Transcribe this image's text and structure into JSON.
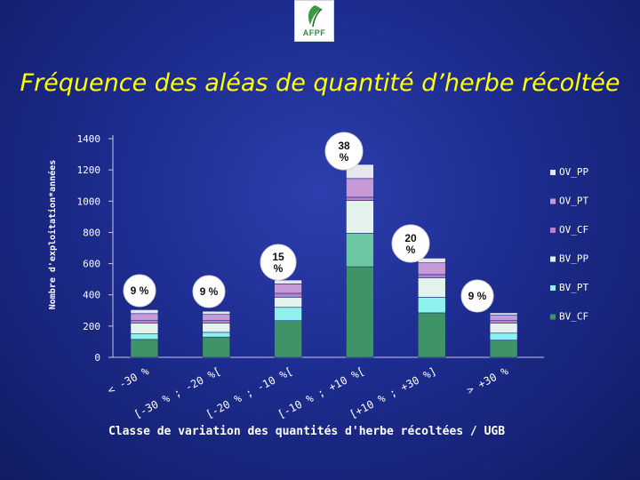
{
  "logo": {
    "text": "AFPF"
  },
  "colors": {
    "OV_PP": "#e6e6ee",
    "OV_PT": "#c59ad6",
    "OV_CF": "#b77fcc",
    "BV_PP": "#e3f3ec",
    "BV_PT": "#8ef2ec",
    "BV_CF": "#3e9466",
    "BV_PT_mid": "#6cc7a2"
  },
  "chart_data": {
    "type": "bar",
    "stacked": true,
    "title": "Fréquence des aléas de quantité d’herbe récoltée",
    "xlabel": "Classe de variation des quantités d'herbe récoltées / UGB",
    "ylabel": "Nombre d'exploitation*années",
    "ylim": [
      0,
      1400
    ],
    "yticks": [
      0,
      200,
      400,
      600,
      800,
      1000,
      1200,
      1400
    ],
    "grid": false,
    "legend_position": "right",
    "categories": [
      "< -30 %",
      "[-30 % ; -20 %[",
      "[-20 % ; -10 %[",
      "[-10 % ; +10 %[",
      "[+10 % ; +30 %]",
      "> +30 %"
    ],
    "series": [
      {
        "name": "BV_CF",
        "values": [
          115,
          130,
          235,
          580,
          285,
          110
        ]
      },
      {
        "name": "BV_PT",
        "values": [
          35,
          30,
          85,
          215,
          100,
          45
        ]
      },
      {
        "name": "BV_PP",
        "values": [
          70,
          60,
          65,
          210,
          125,
          65
        ]
      },
      {
        "name": "OV_CF",
        "values": [
          15,
          15,
          25,
          20,
          20,
          15
        ]
      },
      {
        "name": "OV_PT",
        "values": [
          45,
          40,
          60,
          120,
          75,
          35
        ]
      },
      {
        "name": "OV_PP",
        "values": [
          25,
          20,
          25,
          90,
          30,
          15
        ]
      }
    ],
    "legend": [
      "OV_PP",
      "OV_PT",
      "OV_CF",
      "BV_PP",
      "BV_PT",
      "BV_CF"
    ],
    "annotations": [
      "9 %",
      "9 %",
      "15 %",
      "38 %",
      "20 %",
      "9 %"
    ]
  }
}
